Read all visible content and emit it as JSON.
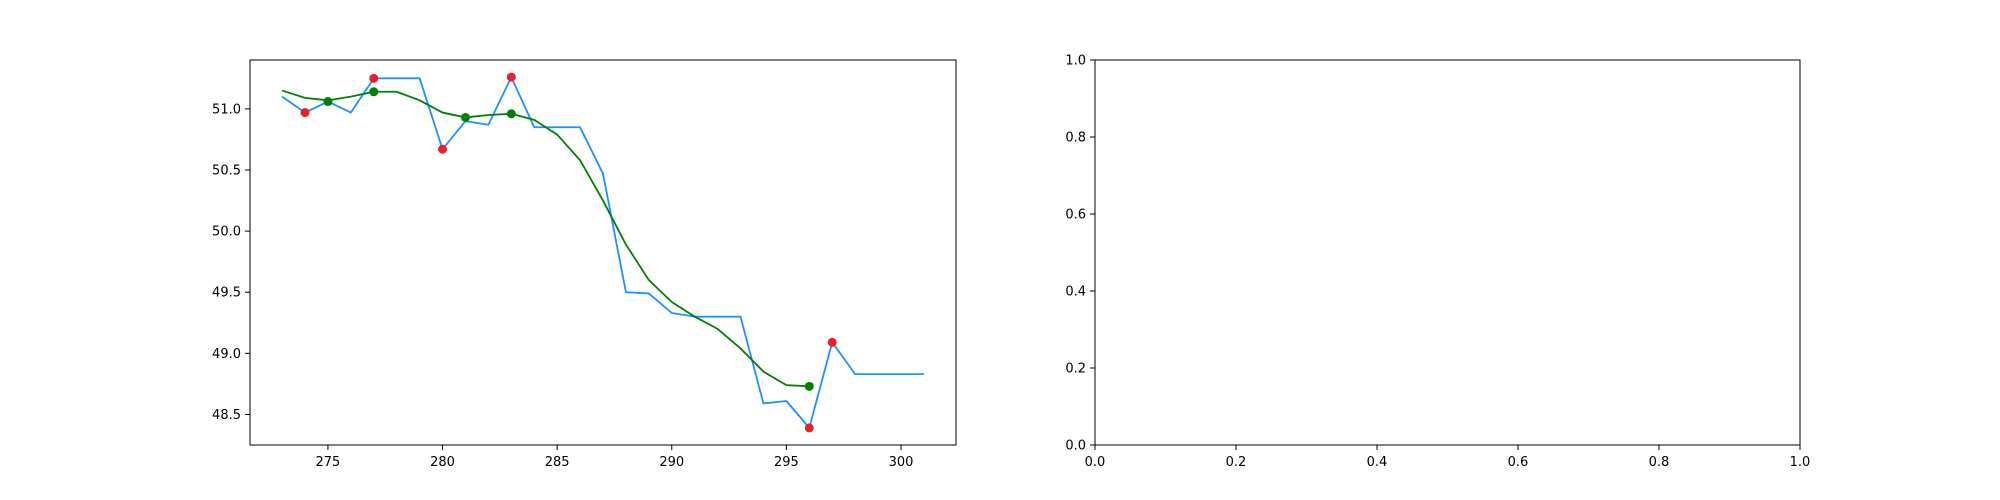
{
  "colors": {
    "price_line": "#1e90ff",
    "smooth_line": "#008000",
    "red_marker": "#e8202a",
    "green_marker": "#008000",
    "axis": "#000000"
  },
  "chart_data": [
    {
      "type": "line",
      "title": "",
      "xlabel": "",
      "ylabel": "",
      "xlim": [
        271.6,
        302.4
      ],
      "ylim": [
        48.25,
        51.4
      ],
      "x_ticks": [
        "275",
        "280",
        "285",
        "290",
        "295",
        "300"
      ],
      "y_ticks": [
        "48.5",
        "49.0",
        "49.5",
        "50.0",
        "50.5",
        "51.0"
      ],
      "grid": false,
      "series": [
        {
          "role": "price",
          "color": "#1e90ff",
          "x": [
            273,
            274,
            275,
            276,
            277,
            278,
            279,
            280,
            281,
            282,
            283,
            284,
            285,
            286,
            287,
            288,
            289,
            290,
            291,
            292,
            293,
            294,
            295,
            296,
            297,
            298,
            299,
            300,
            301
          ],
          "y": [
            51.1,
            50.97,
            51.06,
            50.97,
            51.25,
            51.25,
            51.25,
            50.67,
            50.9,
            50.87,
            51.26,
            50.85,
            50.85,
            50.85,
            50.47,
            49.5,
            49.49,
            49.33,
            49.3,
            49.3,
            49.3,
            48.59,
            48.61,
            48.39,
            49.09,
            48.83,
            48.83,
            48.83,
            48.83
          ]
        },
        {
          "role": "smoothed",
          "color": "#008000",
          "x": [
            273,
            274,
            275,
            276,
            277,
            278,
            279,
            280,
            281,
            282,
            283,
            284,
            285,
            286,
            287,
            288,
            289,
            290,
            291,
            292,
            293,
            294,
            295,
            296
          ],
          "y": [
            51.15,
            51.09,
            51.07,
            51.1,
            51.14,
            51.14,
            51.07,
            50.97,
            50.93,
            50.95,
            50.96,
            50.91,
            50.79,
            50.58,
            50.25,
            49.89,
            49.6,
            49.42,
            49.3,
            49.2,
            49.04,
            48.85,
            48.74,
            48.73
          ]
        },
        {
          "role": "red-points",
          "type": "scatter",
          "color": "#e8202a",
          "x": [
            274,
            277,
            280,
            283,
            296,
            297
          ],
          "y": [
            50.97,
            51.25,
            50.67,
            51.26,
            48.39,
            49.09
          ]
        },
        {
          "role": "green-points",
          "type": "scatter",
          "color": "#008000",
          "x": [
            275,
            277,
            281,
            283,
            296
          ],
          "y": [
            51.06,
            51.14,
            50.93,
            50.96,
            48.73
          ]
        }
      ]
    },
    {
      "type": "line",
      "title": "",
      "xlabel": "",
      "ylabel": "",
      "xlim": [
        0,
        1
      ],
      "ylim": [
        0,
        1
      ],
      "x_ticks": [
        "0.0",
        "0.2",
        "0.4",
        "0.6",
        "0.8",
        "1.0"
      ],
      "y_ticks": [
        "0.0",
        "0.2",
        "0.4",
        "0.6",
        "0.8",
        "1.0"
      ],
      "grid": false,
      "series": []
    }
  ]
}
